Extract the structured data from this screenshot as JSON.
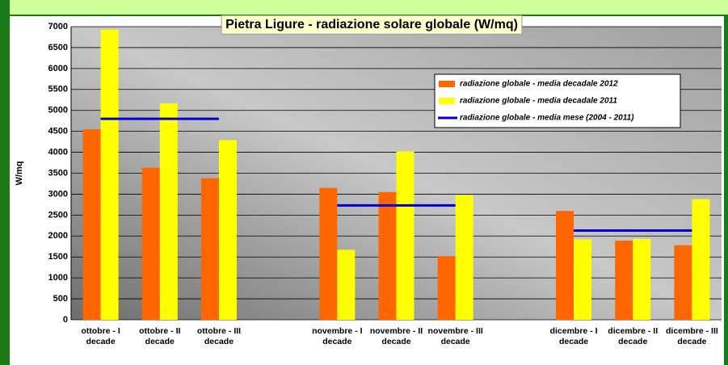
{
  "chart_data": {
    "type": "bar",
    "title": "Pietra Ligure - radiazione solare globale (W/mq)",
    "y_label": "W/mq",
    "categories": [
      "ottobre - I decade",
      "ottobre - II decade",
      "ottobre - III decade",
      null,
      "novembre - I decade",
      "novembre - II decade",
      "novembre - III decade",
      null,
      "dicembre - I decade",
      "dicembre - II decade",
      "dicembre - III decade"
    ],
    "series": [
      {
        "name": "radiazione globale - media decadale 2012",
        "color": "#ff6600",
        "type": "bar",
        "values": [
          4550,
          3630,
          3380,
          null,
          3150,
          3050,
          1520,
          null,
          2600,
          1890,
          1780
        ]
      },
      {
        "name": "radiazione globale - media decadale 2011",
        "color": "#ffff00",
        "type": "bar",
        "values": [
          6930,
          5170,
          4290,
          null,
          1670,
          4020,
          2980,
          null,
          1920,
          1930,
          2880
        ]
      },
      {
        "name": "radiazione globale - media mese (2004 - 2011)",
        "color": "#0000cc",
        "type": "line",
        "values": [
          4800,
          4800,
          4800,
          null,
          2730,
          2730,
          2730,
          null,
          2130,
          2130,
          2130
        ]
      }
    ],
    "ylim": [
      0,
      7000
    ],
    "yticks": [
      0,
      500,
      1000,
      1500,
      2000,
      2500,
      3000,
      3500,
      4000,
      4500,
      5000,
      5500,
      6000,
      6500,
      7000
    ],
    "grid": true,
    "legend": "upper right"
  }
}
